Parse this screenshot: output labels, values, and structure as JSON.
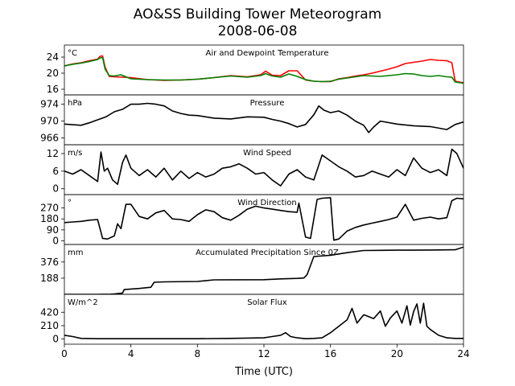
{
  "title_line1": "AO&SS Building Tower Meteorogram",
  "title_line2": "2008-06-08",
  "xlabel": "Time (UTC)",
  "chart_data": {
    "type": "line",
    "title": "AO&SS Building Tower Meteorogram 2008-06-08",
    "shared_x": {
      "label": "Time (UTC)",
      "range": [
        0,
        24
      ],
      "ticks": [
        0,
        4,
        8,
        12,
        16,
        20,
        24
      ]
    },
    "panels": [
      {
        "name": "Air and Dewpoint Temperature",
        "unit": "°C",
        "ylim": [
          14.6,
          27
        ],
        "yticks": [
          16,
          20,
          24
        ],
        "series": [
          {
            "color": "#ff0000",
            "x": [
              0,
              0.5,
              1,
              1.5,
              2,
              2.15,
              2.3,
              2.45,
              2.7,
              3,
              4,
              5,
              6,
              7,
              8,
              9,
              10,
              11,
              11.8,
              12.1,
              12.5,
              13,
              13.5,
              14,
              14.5,
              15,
              15.5,
              16,
              16.5,
              17,
              17.5,
              18,
              18.5,
              19,
              19.5,
              20,
              20.5,
              21,
              21.5,
              22,
              22.5,
              23,
              23.3,
              23.5,
              24
            ],
            "y": [
              21.8,
              22.3,
              22.6,
              23.1,
              23.5,
              24.2,
              24.3,
              21.5,
              19.2,
              19.1,
              18.9,
              18.4,
              18.2,
              18.3,
              18.5,
              18.9,
              19.4,
              19.1,
              19.6,
              20.5,
              19.5,
              19.4,
              20.6,
              20.6,
              18.3,
              18.0,
              17.9,
              17.9,
              18.6,
              18.9,
              19.3,
              19.6,
              20.0,
              20.5,
              21.0,
              21.6,
              22.4,
              22.7,
              23.0,
              23.4,
              23.2,
              23.1,
              22.6,
              18.0,
              17.6
            ]
          },
          {
            "color": "#008000",
            "x": [
              0,
              0.5,
              1,
              1.5,
              2,
              2.15,
              2.3,
              2.45,
              2.7,
              3,
              3.4,
              4,
              5,
              6,
              7,
              8,
              9,
              10,
              11,
              11.8,
              12.1,
              12.5,
              13,
              13.5,
              14,
              14.5,
              15,
              15.5,
              16,
              16.5,
              17,
              17.5,
              18,
              18.5,
              19,
              19.5,
              20,
              20.5,
              21,
              21.5,
              22,
              22.5,
              23,
              23.3,
              23.5,
              24
            ],
            "y": [
              21.8,
              22.2,
              22.5,
              22.9,
              23.4,
              23.8,
              23.9,
              21.0,
              19.4,
              19.3,
              19.6,
              18.6,
              18.4,
              18.3,
              18.3,
              18.5,
              18.9,
              19.3,
              19.0,
              19.4,
              19.9,
              19.3,
              19.0,
              19.8,
              19.2,
              18.4,
              18.0,
              17.9,
              18.0,
              18.5,
              18.8,
              19.1,
              19.4,
              19.3,
              19.2,
              19.4,
              19.6,
              19.9,
              19.8,
              19.4,
              19.2,
              19.4,
              19.1,
              19.0,
              17.8,
              17.5
            ]
          }
        ]
      },
      {
        "name": "Pressure",
        "unit": "hPa",
        "ylim": [
          964.4,
          976.2
        ],
        "yticks": [
          966,
          970,
          974
        ],
        "series": [
          {
            "color": "#000000",
            "x": [
              0,
              1,
              1.5,
              2,
              2.5,
              3,
              3.5,
              4,
              4.5,
              5,
              5.5,
              6,
              6.5,
              7,
              7.5,
              8,
              9,
              10,
              11,
              12,
              12.5,
              13,
              13.5,
              14,
              14.5,
              15,
              15.3,
              15.6,
              16,
              16.5,
              17,
              17.5,
              18,
              18.3,
              18.6,
              19,
              20,
              21,
              22,
              23,
              23.5,
              24
            ],
            "y": [
              969.3,
              969.0,
              969.6,
              970.3,
              971.0,
              972.2,
              972.8,
              974.0,
              974.0,
              974.2,
              974.0,
              973.6,
              972.4,
              971.8,
              971.4,
              971.3,
              970.7,
              970.5,
              971.0,
              970.9,
              970.4,
              970.0,
              969.4,
              968.6,
              969.2,
              971.5,
              973.6,
              972.6,
              972.0,
              972.4,
              971.4,
              970.0,
              969.0,
              967.3,
              968.6,
              970.0,
              969.3,
              968.9,
              968.7,
              968.0,
              969.2,
              969.8
            ]
          }
        ]
      },
      {
        "name": "Wind Speed",
        "unit": "m/s",
        "ylim": [
          -2,
          15
        ],
        "yticks": [
          0,
          6,
          12
        ],
        "series": [
          {
            "color": "#000000",
            "x": [
              0,
              0.5,
              1,
              1.5,
              2,
              2.2,
              2.4,
              2.6,
              2.9,
              3.2,
              3.5,
              3.7,
              4,
              4.5,
              5,
              5.5,
              6,
              6.5,
              7,
              7.5,
              8,
              8.5,
              9,
              9.5,
              10,
              10.5,
              11,
              11.5,
              12,
              12.5,
              13,
              13.5,
              14,
              14.5,
              15,
              15.5,
              16,
              16.5,
              17,
              17.5,
              18,
              18.5,
              19,
              19.5,
              20,
              20.5,
              21,
              21.5,
              22,
              22.5,
              23,
              23.3,
              23.6,
              24
            ],
            "y": [
              6.0,
              5.0,
              6.5,
              4.5,
              2.5,
              12.5,
              6.0,
              7.0,
              3.0,
              1.5,
              9.0,
              11.5,
              7.0,
              4.5,
              6.5,
              4.0,
              7.0,
              3.0,
              6.0,
              3.5,
              5.5,
              4.0,
              5.0,
              7.0,
              7.5,
              8.5,
              7.0,
              5.0,
              5.5,
              3.0,
              1.0,
              5.0,
              6.5,
              4.0,
              3.0,
              11.5,
              9.5,
              7.5,
              6.0,
              4.0,
              4.5,
              6.0,
              5.0,
              4.0,
              6.5,
              4.5,
              10.5,
              7.0,
              5.5,
              6.5,
              4.5,
              13.5,
              12.0,
              7.0
            ]
          }
        ]
      },
      {
        "name": "Wind Direction",
        "unit": "°",
        "ylim": [
          -30,
          380
        ],
        "yticks": [
          0,
          90,
          180,
          270
        ],
        "series": [
          {
            "color": "#000000",
            "x": [
              0,
              0.5,
              1,
              1.5,
              2,
              2.3,
              2.6,
              3,
              3.2,
              3.4,
              3.7,
              4,
              4.5,
              5,
              5.5,
              6,
              6.5,
              7,
              7.5,
              8,
              8.5,
              9,
              9.5,
              10,
              10.5,
              11,
              11.5,
              12,
              12.5,
              13,
              13.5,
              14,
              14.1,
              14.5,
              14.8,
              15.2,
              15.5,
              16,
              16.2,
              16.5,
              17,
              17.5,
              18,
              18.5,
              19,
              19.5,
              20,
              20.5,
              21,
              21.5,
              22,
              22.5,
              23,
              23.3,
              23.6,
              24
            ],
            "y": [
              150,
              155,
              160,
              170,
              175,
              20,
              15,
              40,
              140,
              100,
              300,
              300,
              200,
              180,
              230,
              250,
              180,
              175,
              160,
              215,
              255,
              240,
              190,
              170,
              210,
              260,
              285,
              270,
              260,
              250,
              240,
              235,
              310,
              30,
              20,
              340,
              350,
              355,
              5,
              15,
              80,
              110,
              130,
              145,
              160,
              175,
              195,
              300,
              170,
              185,
              195,
              180,
              190,
              330,
              350,
              345
            ]
          }
        ]
      },
      {
        "name": "Accumulated Precipitation Since 0Z",
        "unit": "mm",
        "ylim": [
          0,
          580
        ],
        "yticks": [
          188,
          376
        ],
        "series": [
          {
            "color": "#000000",
            "x": [
              0,
              2,
              2.8,
              3,
              3.5,
              3.6,
              4.5,
              5.2,
              5.4,
              6,
              8,
              9,
              12,
              13,
              14,
              14.4,
              14.6,
              15,
              16,
              17,
              18,
              19,
              20,
              22,
              23.5,
              24
            ],
            "y": [
              0,
              0,
              2,
              5,
              15,
              55,
              68,
              82,
              140,
              145,
              150,
              168,
              170,
              180,
              185,
              190,
              230,
              440,
              455,
              485,
              510,
              512,
              514,
              515,
              518,
              550
            ]
          }
        ]
      },
      {
        "name": "Solar Flux",
        "unit": "W/m^2",
        "ylim": [
          -80,
          700
        ],
        "yticks": [
          0,
          210,
          420
        ],
        "series": [
          {
            "color": "#000000",
            "x": [
              0,
              0.5,
              1,
              2,
              3,
              4,
              6,
              8,
              10,
              12,
              12.5,
              13,
              13.3,
              13.6,
              14,
              14.5,
              15,
              15.5,
              16,
              16.5,
              17,
              17.3,
              17.6,
              18,
              18.3,
              18.6,
              19,
              19.3,
              19.6,
              20,
              20.3,
              20.6,
              20.8,
              21,
              21.2,
              21.4,
              21.6,
              21.8,
              22,
              22.5,
              23,
              23.5,
              24
            ],
            "y": [
              60,
              40,
              10,
              5,
              5,
              5,
              5,
              5,
              10,
              20,
              40,
              60,
              100,
              40,
              20,
              5,
              10,
              20,
              100,
              200,
              300,
              480,
              250,
              380,
              350,
              320,
              440,
              200,
              330,
              440,
              250,
              520,
              220,
              430,
              550,
              250,
              560,
              200,
              150,
              60,
              20,
              10,
              10
            ]
          }
        ]
      }
    ]
  }
}
